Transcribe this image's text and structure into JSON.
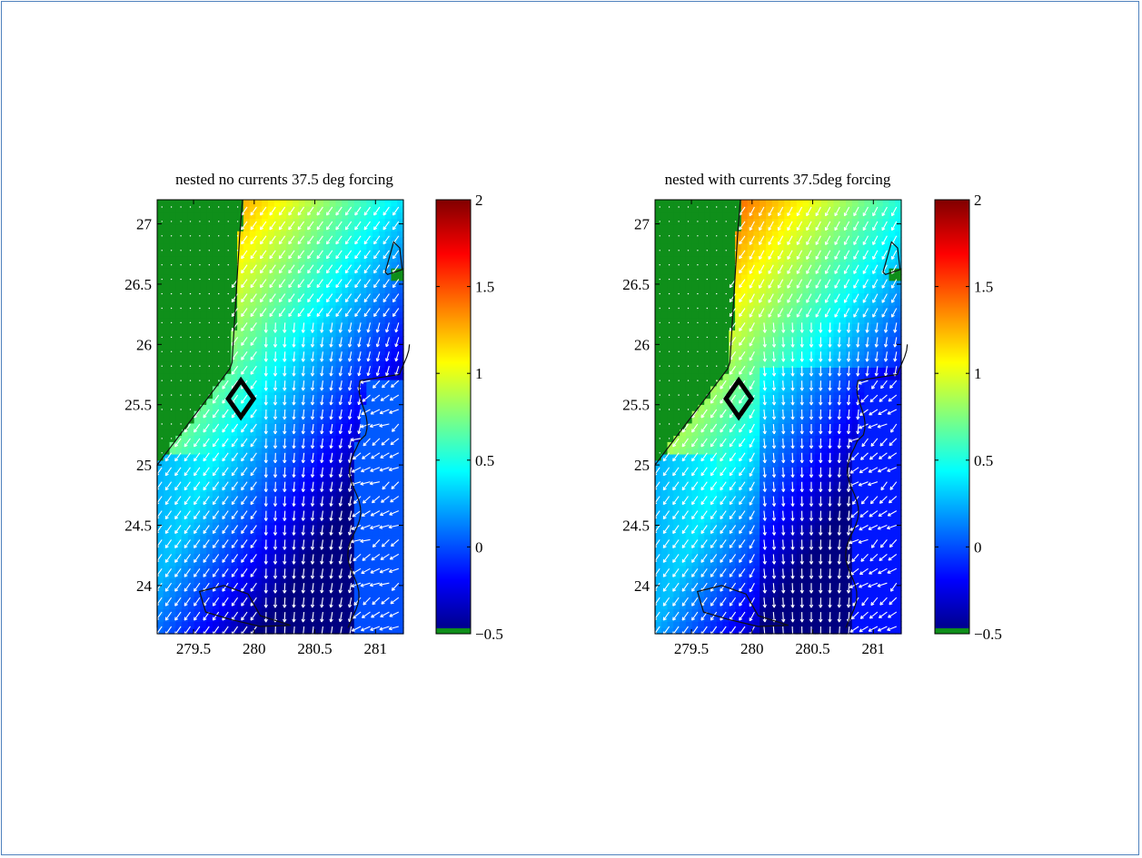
{
  "colors": {
    "land": "#0f8f1a",
    "frame_border": "#4f81bd",
    "arrow": "#ffffff",
    "coast": "#111111",
    "marker": "#000000"
  },
  "chart_data": [
    {
      "type": "heatmap",
      "title": "nested no currents 37.5 deg forcing",
      "xlim": [
        279.2,
        281.23
      ],
      "ylim": [
        23.6,
        27.2
      ],
      "xticks": [
        "279.5",
        "280",
        "280.5",
        "281"
      ],
      "yticks": [
        "24",
        "24.5",
        "25",
        "25.5",
        "26",
        "26.5",
        "27"
      ],
      "xtick_values": [
        279.5,
        280,
        280.5,
        281
      ],
      "ytick_values": [
        24,
        24.5,
        25,
        25.5,
        26,
        26.5,
        27
      ],
      "colorbar": {
        "range": [
          -0.5,
          2
        ],
        "ticks": [
          "2",
          "1.5",
          "1",
          "0.5",
          "0",
          "−0.5"
        ],
        "tick_values": [
          2,
          1.5,
          1,
          0.5,
          0,
          -0.5
        ]
      },
      "marker": {
        "shape": "diamond",
        "x": 279.89,
        "y": 25.55
      },
      "variant": "no_currents"
    },
    {
      "type": "heatmap",
      "title": "nested with currents 37.5deg forcing",
      "xlim": [
        279.2,
        281.23
      ],
      "ylim": [
        23.6,
        27.2
      ],
      "xticks": [
        "279.5",
        "280",
        "280.5",
        "281"
      ],
      "yticks": [
        "24",
        "24.5",
        "25",
        "25.5",
        "26",
        "26.5",
        "27"
      ],
      "xtick_values": [
        279.5,
        280,
        280.5,
        281
      ],
      "ytick_values": [
        24,
        24.5,
        25,
        25.5,
        26,
        26.5,
        27
      ],
      "colorbar": {
        "range": [
          -0.5,
          2
        ],
        "ticks": [
          "2",
          "1.5",
          "1",
          "0.5",
          "0",
          "−0.5"
        ],
        "tick_values": [
          2,
          1.5,
          1,
          0.5,
          0,
          -0.5
        ]
      },
      "marker": {
        "shape": "diamond",
        "x": 279.89,
        "y": 25.55
      },
      "variant": "with_currents"
    }
  ]
}
